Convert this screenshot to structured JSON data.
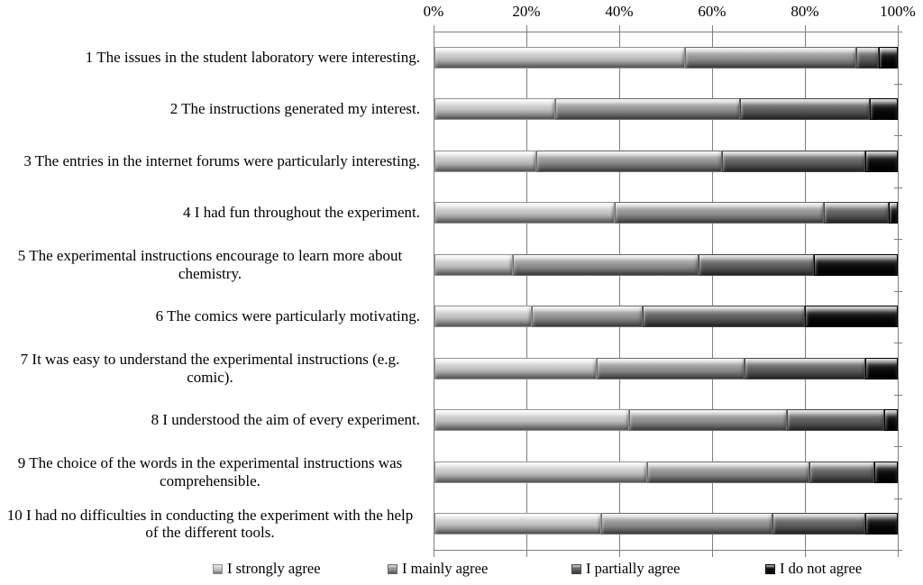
{
  "chart_data": {
    "type": "bar",
    "orientation": "horizontal",
    "stacked": true,
    "title": "",
    "xlabel": "",
    "ylabel": "",
    "xlim": [
      0,
      100
    ],
    "x_ticks": [
      "0%",
      "20%",
      "40%",
      "60%",
      "80%",
      "100%"
    ],
    "grid": "vertical",
    "legend_position": "bottom",
    "categories": [
      "1 The issues in the student laboratory were interesting.",
      "2 The instructions generated my interest.",
      "3 The entries in the internet forums were particularly interesting.",
      "4 I had fun throughout the experiment.",
      "5 The experimental instructions encourage to learn more about chemistry.",
      "6 The comics were particularly motivating.",
      "7 It was easy to understand the experimental instructions (e.g. comic).",
      "8 I understood the aim of every experiment.",
      "9 The choice of the words in the experimental instructions was comprehensible.",
      "10 I had no difficulties in conducting the experiment with the help of the different tools."
    ],
    "series": [
      {
        "name": "I strongly agree",
        "color": "#c2c2c2",
        "values": [
          54,
          26,
          22,
          39,
          17,
          21,
          35,
          42,
          46,
          36
        ]
      },
      {
        "name": "I mainly agree",
        "color": "#909090",
        "values": [
          37,
          40,
          40,
          45,
          40,
          24,
          32,
          34,
          35,
          37
        ]
      },
      {
        "name": "I partially agree",
        "color": "#5f5f5f",
        "values": [
          5,
          28,
          31,
          14,
          25,
          35,
          26,
          21,
          14,
          20
        ]
      },
      {
        "name": "I do not agree",
        "color": "#0c0c0c",
        "values": [
          4,
          6,
          7,
          2,
          18,
          20,
          7,
          3,
          5,
          7
        ]
      }
    ]
  },
  "layout_note": "percentage scale survey chart"
}
